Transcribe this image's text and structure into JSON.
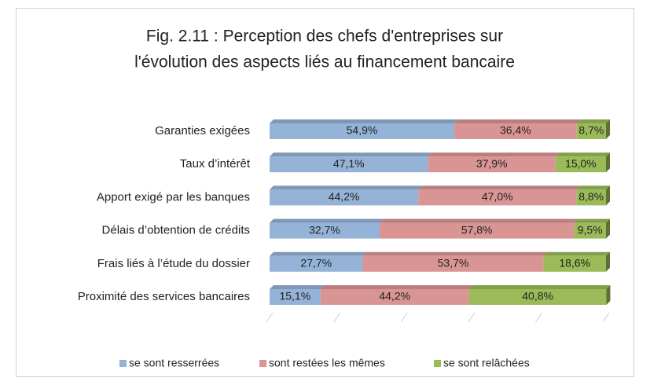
{
  "chart_data": {
    "type": "stacked-bar-horizontal-3d",
    "title": [
      "Fig. 2.11 : Perception des chefs d'entreprises sur",
      "l'évolution des aspects liés au financement bancaire"
    ],
    "categories": [
      "Garanties exigées",
      "Taux d’intérêt",
      "Apport exigé par les banques",
      "Délais d’obtention de crédits",
      "Frais liés à l’étude du dossier",
      "Proximité des services bancaires"
    ],
    "series": [
      {
        "name": "se sont resserrées",
        "color": "#95b3d7",
        "values": [
          54.9,
          47.1,
          44.2,
          32.7,
          27.7,
          15.1
        ],
        "value_labels": [
          "54,9%",
          "47,1%",
          "44,2%",
          "32,7%",
          "27,7%",
          "15,1%"
        ]
      },
      {
        "name": "sont restées les mêmes",
        "color": "#d99594",
        "values": [
          36.4,
          37.9,
          47.0,
          57.8,
          53.7,
          44.2
        ],
        "value_labels": [
          "36,4%",
          "37,9%",
          "47,0%",
          "57,8%",
          "53,7%",
          "44,2%"
        ]
      },
      {
        "name": "se sont relâchées",
        "color": "#9bbb59",
        "values": [
          8.7,
          15.0,
          8.8,
          9.5,
          18.6,
          40.8
        ],
        "value_labels": [
          "8,7%",
          "15,0%",
          "8,8%",
          "9,5%",
          "18,6%",
          "40,8%"
        ]
      }
    ],
    "xlim": [
      0,
      100
    ],
    "xticks": [
      0,
      20,
      40,
      60,
      80,
      100
    ],
    "legend": "bottom"
  }
}
